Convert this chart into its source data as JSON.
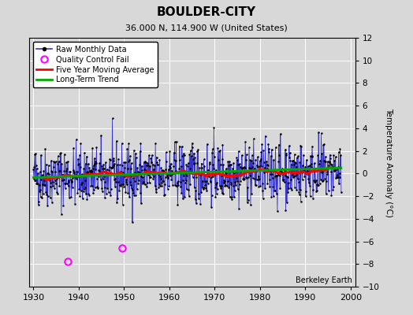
{
  "title": "BOULDER-CITY",
  "subtitle": "36.000 N, 114.900 W (United States)",
  "watermark": "Berkeley Earth",
  "xlim": [
    1929,
    2001
  ],
  "ylim": [
    -10,
    12
  ],
  "yticks": [
    -10,
    -8,
    -6,
    -4,
    -2,
    0,
    2,
    4,
    6,
    8,
    10,
    12
  ],
  "xticks": [
    1930,
    1940,
    1950,
    1960,
    1970,
    1980,
    1990,
    2000
  ],
  "ylabel": "Temperature Anomaly (°C)",
  "bg_color": "#d8d8d8",
  "plot_bg": "#d8d8d8",
  "grid_color": "white",
  "raw_line_color": "#3333cc",
  "raw_marker_color": "black",
  "qc_fail_color": "#ff00ff",
  "moving_avg_color": "red",
  "trend_color": "#00aa00",
  "seed": 42,
  "n_months": 816,
  "start_year": 1930.0,
  "qc_fail_years": [
    1937.5,
    1949.5
  ],
  "qc_fail_values": [
    -7.8,
    -6.6
  ]
}
